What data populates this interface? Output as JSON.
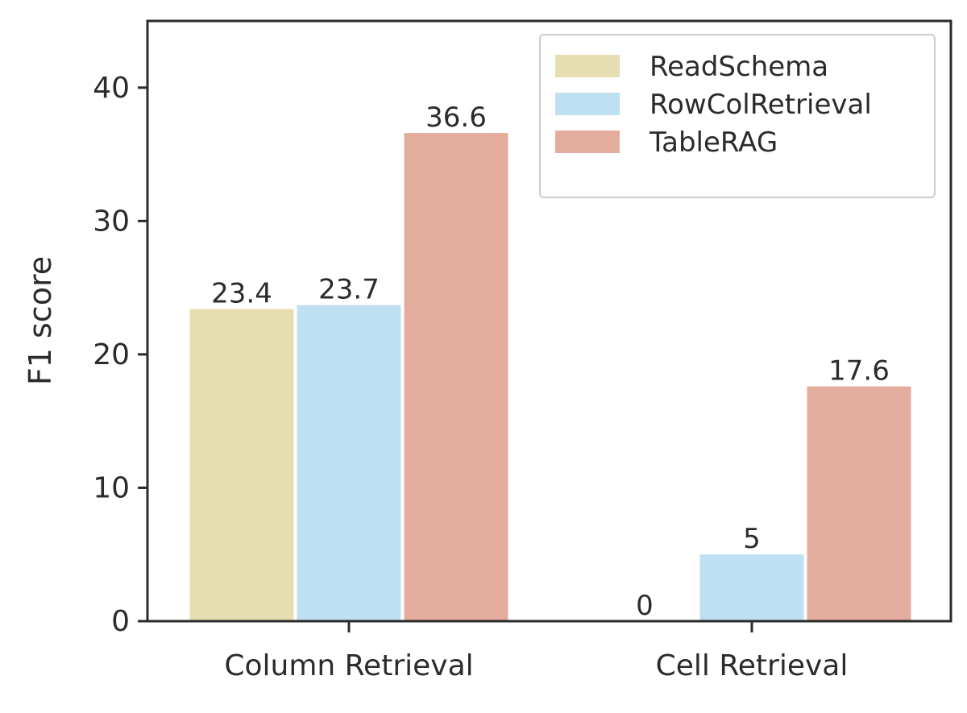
{
  "chart_data": {
    "type": "bar",
    "title": "",
    "xlabel": "",
    "ylabel": "F1 score",
    "categories": [
      "Column Retrieval",
      "Cell Retrieval"
    ],
    "series": [
      {
        "name": "ReadSchema",
        "values": [
          23.4,
          0
        ],
        "labels": [
          "23.4",
          "0"
        ],
        "color": "#e6deb0"
      },
      {
        "name": "RowColRetrieval",
        "values": [
          23.7,
          5
        ],
        "labels": [
          "23.7",
          "5"
        ],
        "color": "#bfe0f3"
      },
      {
        "name": "TableRAG",
        "values": [
          36.6,
          17.6
        ],
        "labels": [
          "36.6",
          "17.6"
        ],
        "color": "#e4ac9d"
      }
    ],
    "ylim": [
      0,
      45
    ],
    "yticks": [
      "0",
      "10",
      "20",
      "30",
      "40"
    ],
    "grid": false,
    "legend_position": "top-right"
  }
}
